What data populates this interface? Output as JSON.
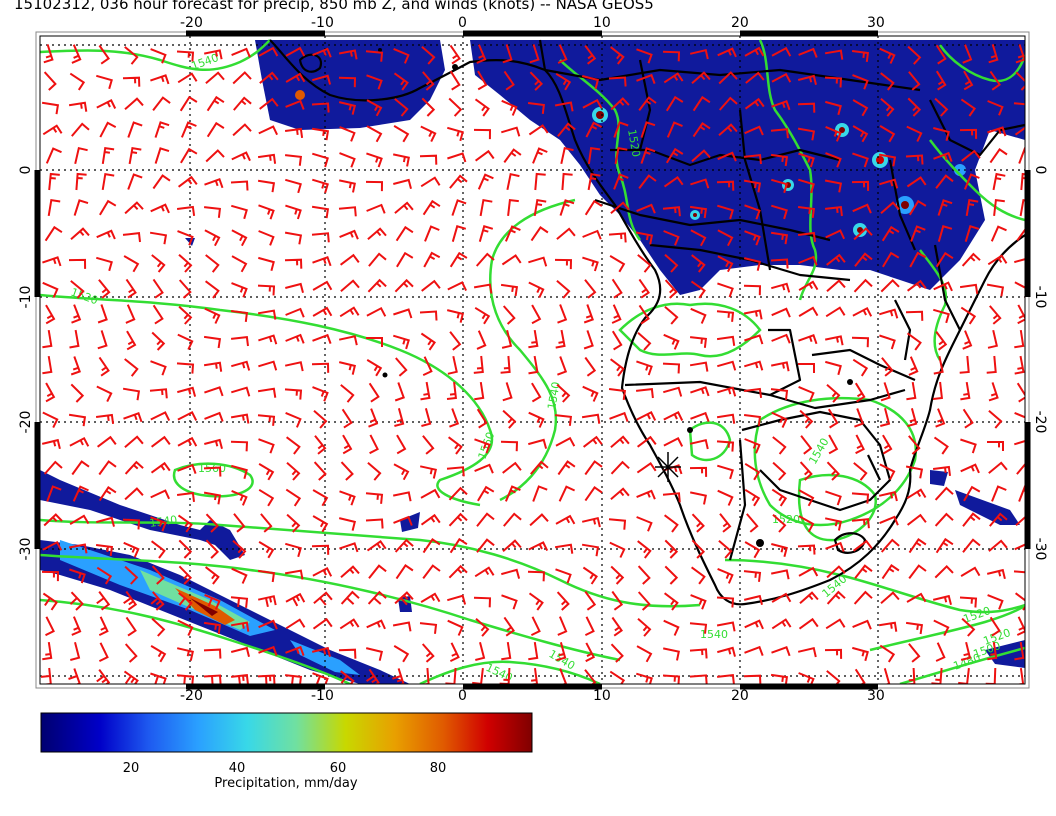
{
  "title": "15102312, 036 hour forecast for precip, 850 mb Z, and winds (knots) -- NASA GEOS5",
  "map": {
    "lon_ticks_top": [
      -20,
      -10,
      0,
      10,
      20,
      30
    ],
    "lon_ticks_bottom": [
      -20,
      -10,
      0,
      10,
      20,
      30
    ],
    "lat_ticks_left": [
      0,
      -10,
      -20,
      -30
    ],
    "lat_ticks_right": [
      0,
      -10,
      -20,
      -30
    ],
    "contour_labels": [
      "1540",
      "1560",
      "1540",
      "1540",
      "1540",
      "1520",
      "1540",
      "1520",
      "1540",
      "1520",
      "1500",
      "1480",
      "1520",
      "1540",
      "1540",
      "1560",
      "1520"
    ]
  },
  "colorbar": {
    "label": "Precipitation, mm/day",
    "ticks": [
      "20",
      "40",
      "60",
      "80"
    ],
    "colors": [
      "#000070",
      "#0000c8",
      "#1e5af0",
      "#2aa0ff",
      "#38d8e8",
      "#70e0a0",
      "#c8d800",
      "#e8a000",
      "#e05a00",
      "#d00000",
      "#800000"
    ]
  },
  "legend_colors": {
    "contour": "#33dd33",
    "wind_barb": "#ee1111",
    "precip_fill": "#101a9c",
    "coast": "#000000"
  }
}
